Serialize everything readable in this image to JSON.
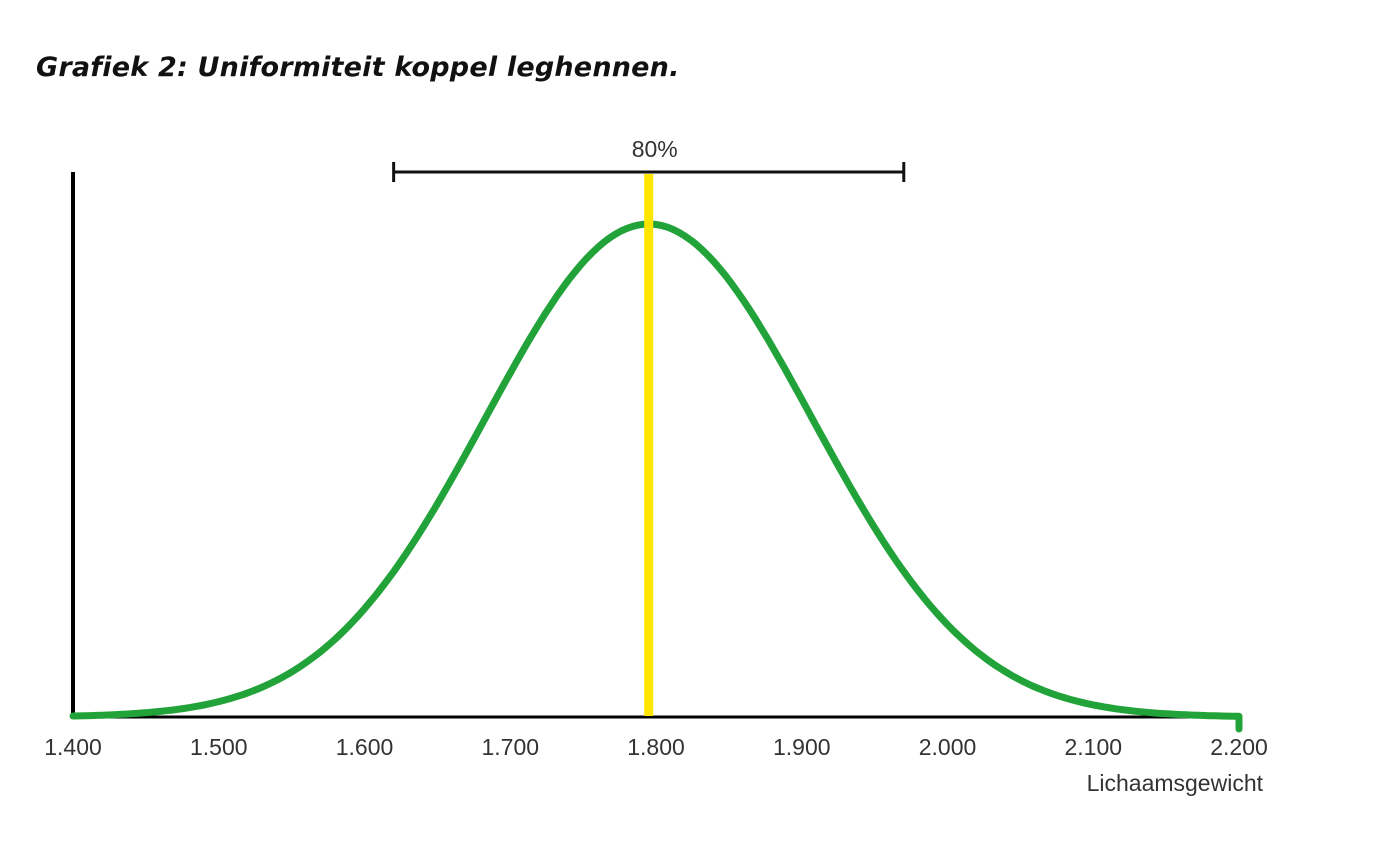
{
  "chart_data": {
    "type": "line",
    "title": "Grafiek 2: Uniformiteit koppel leghennen.",
    "xlabel": "Lichaamsgewicht",
    "ylabel": "",
    "x_ticks": [
      "1.400",
      "1.500",
      "1.600",
      "1.700",
      "1.800",
      "1.900",
      "2.000",
      "2.100",
      "2.200"
    ],
    "xlim": [
      1400,
      2200
    ],
    "curve": {
      "kind": "normal-distribution",
      "mean": 1795,
      "sd": 112,
      "color": "#22a33a"
    },
    "mean_line": {
      "x": 1795,
      "color": "#ffe600"
    },
    "uniformity_range": {
      "label": "80%",
      "from": 1620,
      "to": 1970
    },
    "grid": false
  }
}
